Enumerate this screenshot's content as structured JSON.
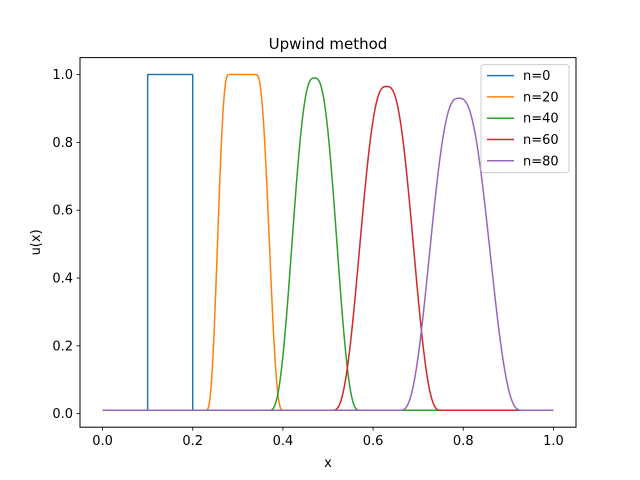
{
  "chart_data": {
    "type": "line",
    "title": "Upwind method",
    "xlabel": "x",
    "ylabel": "u(x)",
    "xlim": [
      -0.05,
      1.05
    ],
    "ylim": [
      -0.04,
      1.05
    ],
    "xticks": [
      0.0,
      0.2,
      0.4,
      0.6,
      0.8,
      1.0
    ],
    "xtick_labels": [
      "0.0",
      "0.2",
      "0.4",
      "0.6",
      "0.8",
      "1.0"
    ],
    "yticks": [
      0.0,
      0.2,
      0.4,
      0.6,
      0.8,
      1.0
    ],
    "ytick_labels": [
      "0.0",
      "0.2",
      "0.4",
      "0.6",
      "0.8",
      "1.0"
    ],
    "grid": false,
    "legend_position": "top-right",
    "baseline": 0.01,
    "series": [
      {
        "name": "n=0",
        "color": "#1f77b4",
        "x": [
          0.0,
          0.1,
          0.1,
          0.2,
          0.2,
          1.0
        ],
        "y": [
          0.01,
          0.01,
          1.0,
          1.0,
          0.01,
          0.01
        ]
      },
      {
        "name": "n=20",
        "color": "#ff7f0e",
        "peak_x": 0.31,
        "peak_y": 1.0,
        "support": [
          0.23,
          0.4
        ],
        "flat_top": 0.03
      },
      {
        "name": "n=40",
        "color": "#2ca02c",
        "peak_x": 0.47,
        "peak_y": 0.99,
        "support": [
          0.37,
          0.57
        ],
        "flat_top": 0.0
      },
      {
        "name": "n=60",
        "color": "#d62728",
        "peak_x": 0.63,
        "peak_y": 0.965,
        "support": [
          0.51,
          0.75
        ],
        "flat_top": 0.0
      },
      {
        "name": "n=80",
        "color": "#9467bd",
        "peak_x": 0.79,
        "peak_y": 0.93,
        "support": [
          0.66,
          0.93
        ],
        "flat_top": 0.0
      }
    ]
  }
}
